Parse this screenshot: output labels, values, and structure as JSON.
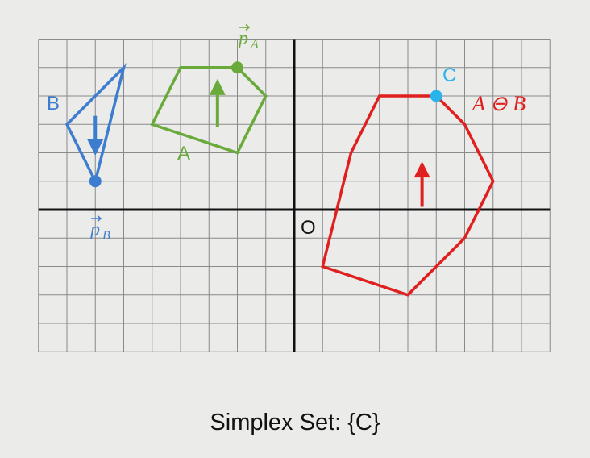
{
  "labels": {
    "B": "B",
    "pB": "p",
    "pB_sub": "B",
    "A": "A",
    "pA": "p",
    "pA_sub": "A",
    "C": "C",
    "origin": "O",
    "minkowski": "A ⊖ B"
  },
  "caption": {
    "prefix": "Simplex Set: ",
    "value": "{C}"
  },
  "colors": {
    "blue": "#3c7dd0",
    "green": "#6aaa3a",
    "red": "#e0201e",
    "cyan": "#2ab3ea",
    "grid": "#8a8a8a",
    "axis": "#111111"
  },
  "grid": {
    "x_range": [
      -9,
      9
    ],
    "y_range": [
      -5,
      6
    ]
  },
  "shapes": {
    "B": [
      [
        -8,
        3
      ],
      [
        -6,
        5
      ],
      [
        -7,
        1
      ]
    ],
    "A": [
      [
        -5,
        3
      ],
      [
        -4,
        5
      ],
      [
        -2,
        5
      ],
      [
        -1,
        4
      ],
      [
        -2,
        2
      ]
    ],
    "A_minus_B": [
      [
        1,
        -2
      ],
      [
        2,
        2
      ],
      [
        3,
        4
      ],
      [
        5,
        4
      ],
      [
        6,
        3
      ],
      [
        7,
        1
      ],
      [
        6,
        -1
      ],
      [
        4,
        -3
      ]
    ]
  },
  "points": {
    "pB": [
      -7,
      1
    ],
    "pA": [
      -2,
      5
    ],
    "C": [
      5,
      4
    ]
  },
  "direction_arrows": {
    "B": {
      "from": [
        -7,
        3.3
      ],
      "to": [
        -7,
        1.9
      ]
    },
    "A": {
      "from": [
        -2.7,
        2.9
      ],
      "to": [
        -2.7,
        4.6
      ]
    },
    "A_minus_B": {
      "from": [
        4.5,
        0.1
      ],
      "to": [
        4.5,
        1.7
      ]
    }
  }
}
